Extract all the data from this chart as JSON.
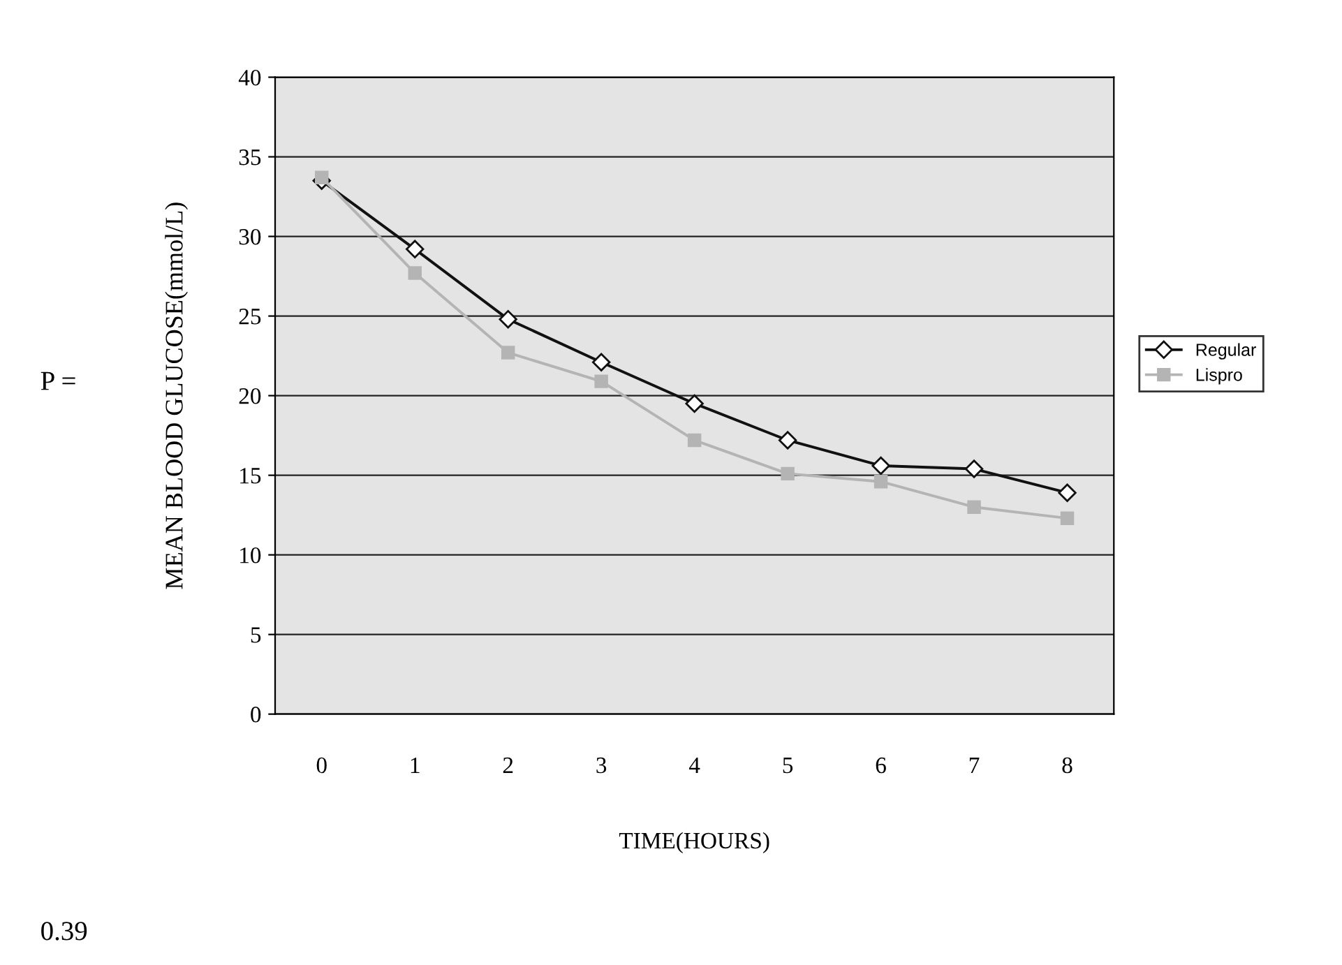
{
  "chart_data": {
    "type": "line",
    "xlabel": "TIME(HOURS)",
    "ylabel": "MEAN BLOOD GLUCOSE(mmol/L)",
    "categories": [
      "0",
      "1",
      "2",
      "3",
      "4",
      "5",
      "6",
      "7",
      "8"
    ],
    "series": [
      {
        "name": "Regular",
        "color": "#111111",
        "marker": "diamond",
        "line_style": "solid",
        "values": [
          33.5,
          29.2,
          24.8,
          22.1,
          19.5,
          17.2,
          15.6,
          15.4,
          13.9
        ]
      },
      {
        "name": "Lispro",
        "color": "#b4b4b4",
        "marker": "square",
        "line_style": "solid",
        "values": [
          33.7,
          27.7,
          22.7,
          20.9,
          17.2,
          15.1,
          14.6,
          13.0,
          12.3
        ]
      }
    ],
    "ylim": [
      0,
      40
    ],
    "yticks": [
      0,
      5,
      10,
      15,
      20,
      25,
      30,
      35,
      40
    ],
    "grid": "y",
    "legend": "right",
    "annotations": [
      "P =",
      "0.39"
    ]
  }
}
